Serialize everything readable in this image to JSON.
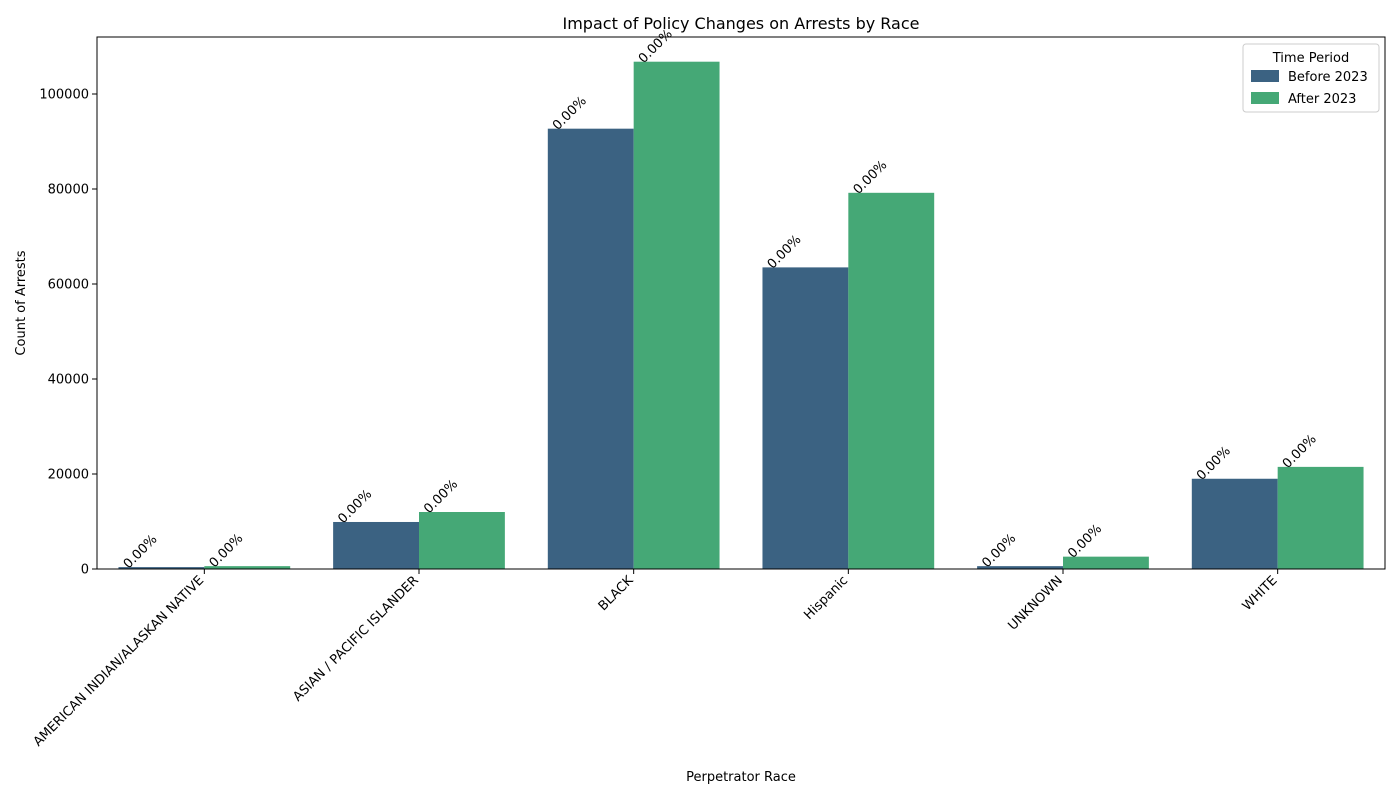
{
  "chart_data": {
    "type": "bar",
    "title": "Impact of Policy Changes on Arrests by Race",
    "xlabel": "Perpetrator Race",
    "ylabel": "Count of Arrests",
    "categories": [
      "AMERICAN INDIAN/ALASKAN NATIVE",
      "ASIAN / PACIFIC ISLANDER",
      "BLACK",
      "Hispanic",
      "UNKNOWN",
      "WHITE"
    ],
    "series": [
      {
        "name": "Before 2023",
        "color": "#3b6282",
        "values": [
          400,
          9900,
          92700,
          63500,
          600,
          19000
        ],
        "labels": [
          "0.00%",
          "0.00%",
          "0.00%",
          "0.00%",
          "0.00%",
          "0.00%"
        ]
      },
      {
        "name": "After 2023",
        "color": "#45a876",
        "values": [
          600,
          12000,
          106800,
          79200,
          2600,
          21500
        ],
        "labels": [
          "0.00%",
          "0.00%",
          "0.00%",
          "0.00%",
          "0.00%",
          "0.00%"
        ]
      }
    ],
    "y_ticks": [
      0,
      20000,
      40000,
      60000,
      80000,
      100000
    ],
    "ylim": [
      0,
      112000
    ],
    "legend": {
      "title": "Time Period",
      "placement": "top-right"
    },
    "grid": false
  }
}
